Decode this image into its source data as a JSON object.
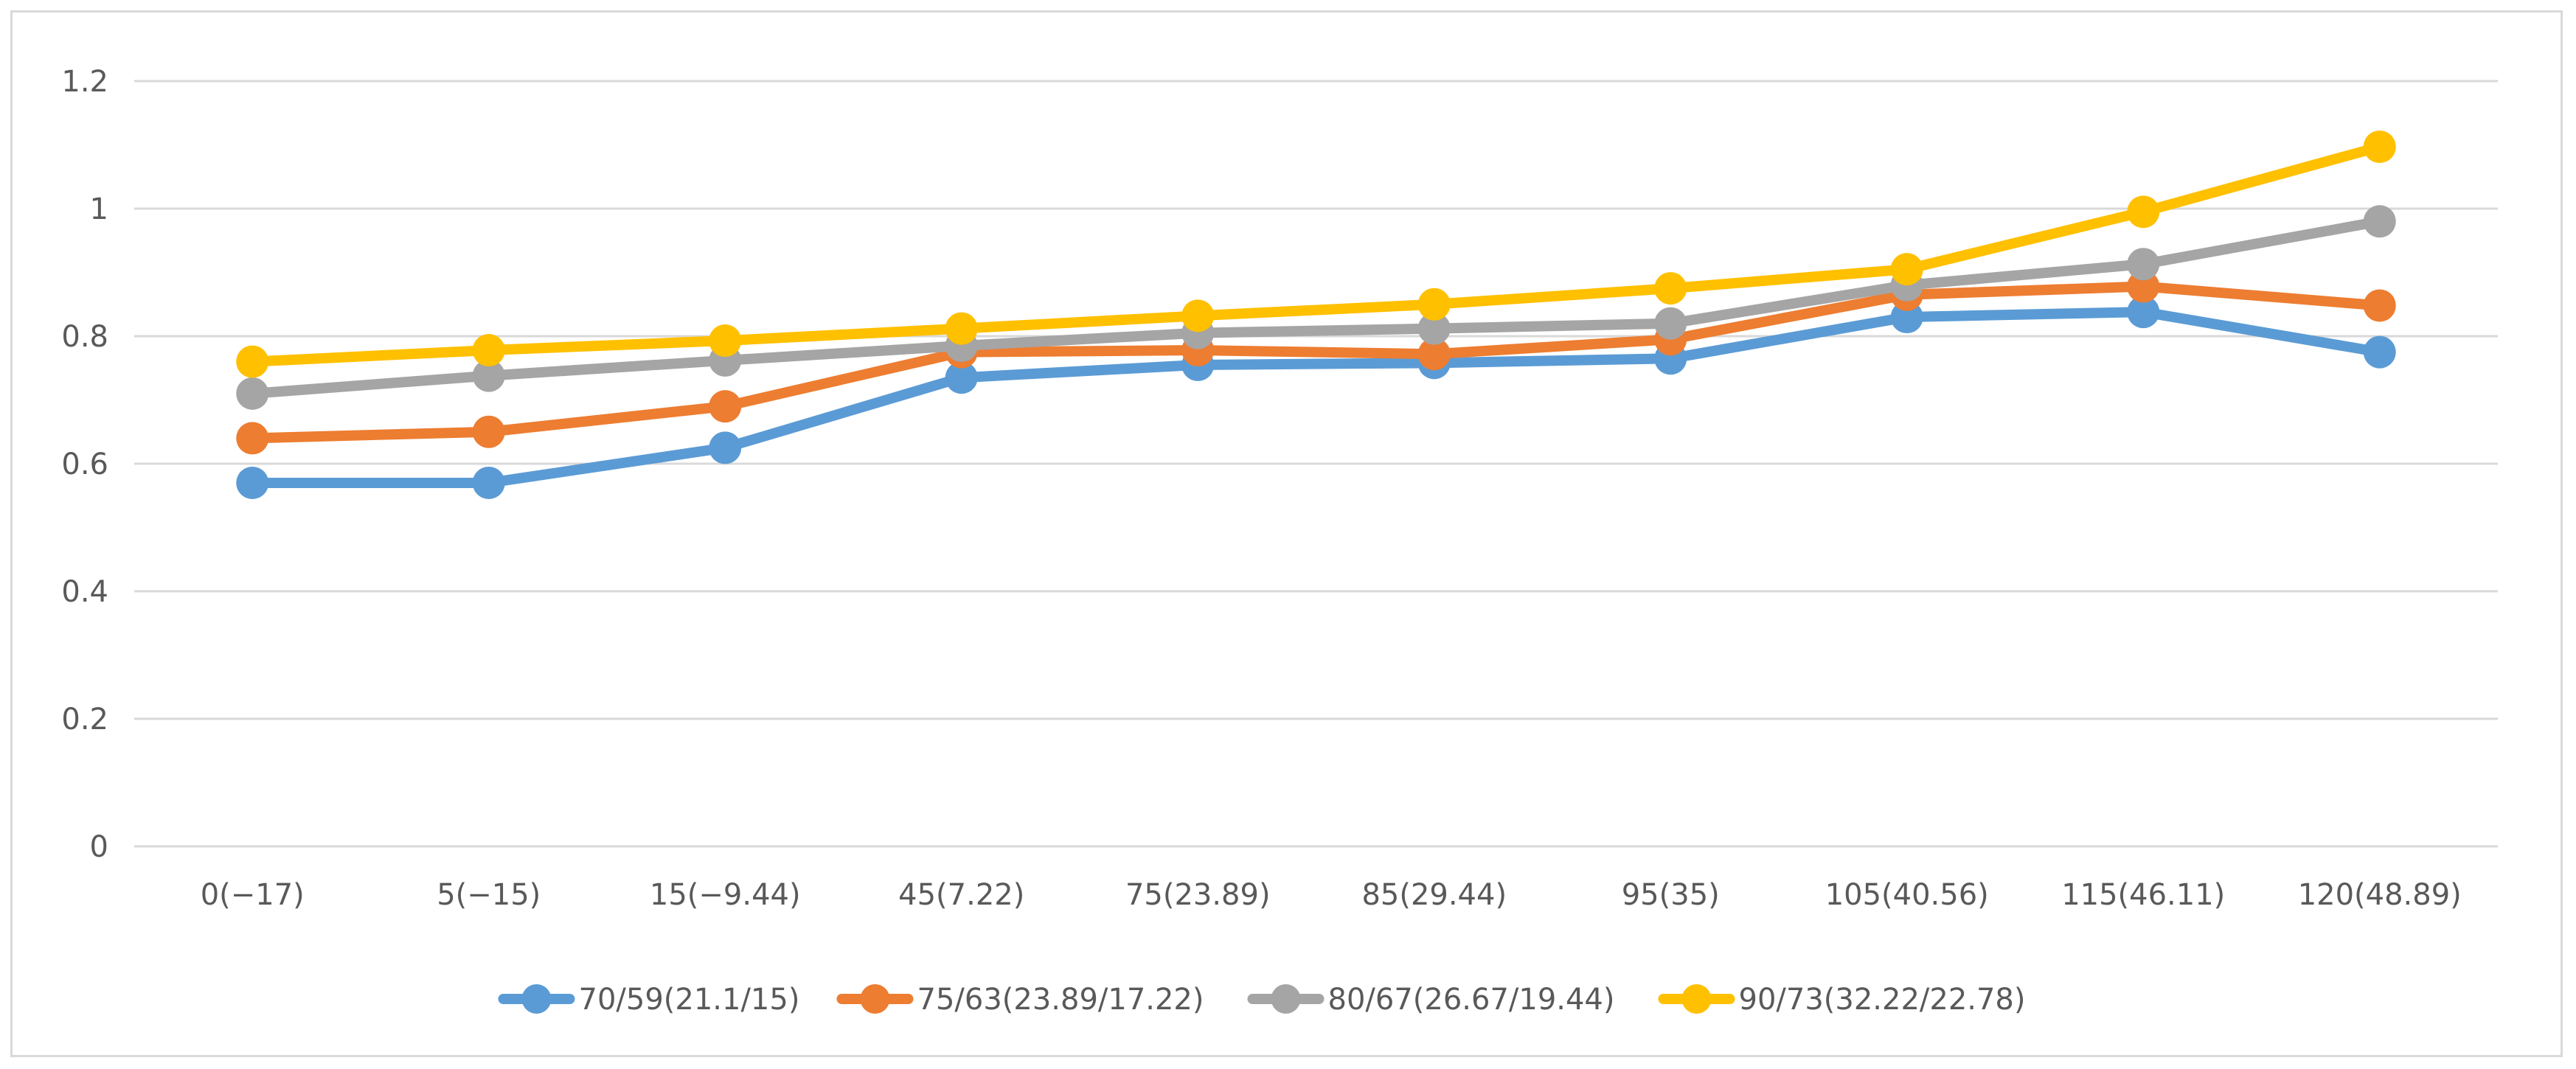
{
  "chart_data": {
    "type": "line",
    "title": "",
    "xlabel": "",
    "ylabel": "",
    "categories": [
      "0(−17)",
      "5(−15)",
      "15(−9.44)",
      "45(7.22)",
      "75(23.89)",
      "85(29.44)",
      "95(35)",
      "105(40.56)",
      "115(46.11)",
      "120(48.89)"
    ],
    "ylim": [
      0,
      1.2
    ],
    "yticks": [
      "0",
      "0.2",
      "0.4",
      "0.6",
      "0.8",
      "1",
      "1.2"
    ],
    "grid": "horizontal",
    "legend_position": "bottom",
    "series": [
      {
        "name": "70/59(21.1/15)",
        "color": "#5B9BD5",
        "values": [
          0.57,
          0.57,
          0.625,
          0.735,
          0.755,
          0.758,
          0.765,
          0.83,
          0.838,
          0.775
        ]
      },
      {
        "name": "75/63(23.89/17.22)",
        "color": "#ED7D31",
        "values": [
          0.64,
          0.65,
          0.69,
          0.775,
          0.778,
          0.772,
          0.795,
          0.865,
          0.878,
          0.848
        ]
      },
      {
        "name": "80/67(26.67/19.44)",
        "color": "#A5A5A5",
        "values": [
          0.71,
          0.738,
          0.762,
          0.785,
          0.805,
          0.812,
          0.82,
          0.88,
          0.913,
          0.98
        ]
      },
      {
        "name": "90/73(32.22/22.78)",
        "color": "#FFC000",
        "values": [
          0.76,
          0.778,
          0.793,
          0.812,
          0.832,
          0.85,
          0.875,
          0.905,
          0.995,
          1.097
        ]
      }
    ]
  }
}
